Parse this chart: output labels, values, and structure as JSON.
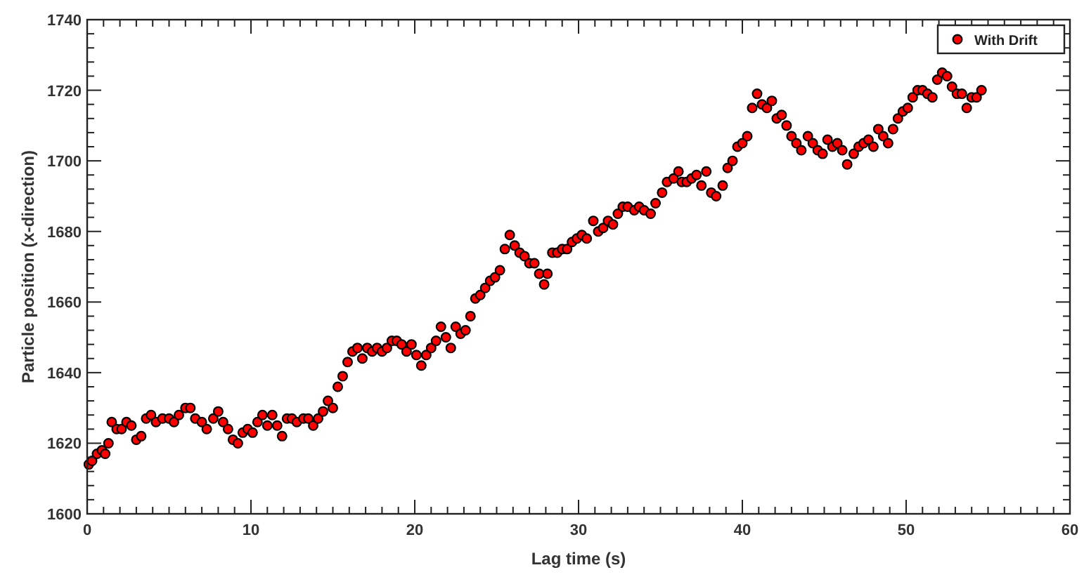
{
  "chart_data": {
    "type": "scatter",
    "xlabel": "Lag time (s)",
    "ylabel": "Particle position (x-direction)",
    "xlim": [
      0,
      60
    ],
    "ylim": [
      1600,
      1740
    ],
    "xticks": [
      0,
      {
        "value": 1,
        "label": null
      },
      {
        "value": 2,
        "label": null
      },
      {
        "value": 3,
        "label": null
      },
      {
        "value": 4,
        "label": null
      },
      {
        "value": 5,
        "label": null
      },
      {
        "value": 6,
        "label": null
      },
      {
        "value": 7,
        "label": null
      },
      {
        "value": 8,
        "label": null
      },
      {
        "value": 9,
        "label": null
      },
      10,
      {
        "value": 11,
        "label": null
      },
      {
        "value": 12,
        "label": null
      },
      {
        "value": 13,
        "label": null
      },
      {
        "value": 14,
        "label": null
      },
      {
        "value": 15,
        "label": null
      },
      {
        "value": 16,
        "label": null
      },
      {
        "value": 17,
        "label": null
      },
      {
        "value": 18,
        "label": null
      },
      {
        "value": 19,
        "label": null
      },
      20,
      {
        "value": 21,
        "label": null
      },
      {
        "value": 22,
        "label": null
      },
      {
        "value": 23,
        "label": null
      },
      {
        "value": 24,
        "label": null
      },
      {
        "value": 25,
        "label": null
      },
      {
        "value": 26,
        "label": null
      },
      {
        "value": 27,
        "label": null
      },
      {
        "value": 28,
        "label": null
      },
      {
        "value": 29,
        "label": null
      },
      30,
      {
        "value": 31,
        "label": null
      },
      {
        "value": 32,
        "label": null
      },
      {
        "value": 33,
        "label": null
      },
      {
        "value": 34,
        "label": null
      },
      {
        "value": 35,
        "label": null
      },
      {
        "value": 36,
        "label": null
      },
      {
        "value": 37,
        "label": null
      },
      {
        "value": 38,
        "label": null
      },
      {
        "value": 39,
        "label": null
      },
      40,
      {
        "value": 41,
        "label": null
      },
      {
        "value": 42,
        "label": null
      },
      {
        "value": 43,
        "label": null
      },
      {
        "value": 44,
        "label": null
      },
      {
        "value": 45,
        "label": null
      },
      {
        "value": 46,
        "label": null
      },
      {
        "value": 47,
        "label": null
      },
      {
        "value": 48,
        "label": null
      },
      {
        "value": 49,
        "label": null
      },
      50,
      {
        "value": 51,
        "label": null
      },
      {
        "value": 52,
        "label": null
      },
      {
        "value": 53,
        "label": null
      },
      {
        "value": 54,
        "label": null
      },
      {
        "value": 55,
        "label": null
      },
      {
        "value": 56,
        "label": null
      },
      {
        "value": 57,
        "label": null
      },
      {
        "value": 58,
        "label": null
      },
      {
        "value": 59,
        "label": null
      },
      60
    ],
    "yticks": [
      1600,
      {
        "value": 1604,
        "label": null
      },
      {
        "value": 1608,
        "label": null
      },
      {
        "value": 1612,
        "label": null
      },
      {
        "value": 1616,
        "label": null
      },
      1620,
      {
        "value": 1624,
        "label": null
      },
      {
        "value": 1628,
        "label": null
      },
      {
        "value": 1632,
        "label": null
      },
      {
        "value": 1636,
        "label": null
      },
      1640,
      {
        "value": 1644,
        "label": null
      },
      {
        "value": 1648,
        "label": null
      },
      {
        "value": 1652,
        "label": null
      },
      {
        "value": 1656,
        "label": null
      },
      1660,
      {
        "value": 1664,
        "label": null
      },
      {
        "value": 1668,
        "label": null
      },
      {
        "value": 1672,
        "label": null
      },
      {
        "value": 1676,
        "label": null
      },
      1680,
      {
        "value": 1684,
        "label": null
      },
      {
        "value": 1688,
        "label": null
      },
      {
        "value": 1692,
        "label": null
      },
      {
        "value": 1696,
        "label": null
      },
      1700,
      {
        "value": 1704,
        "label": null
      },
      {
        "value": 1708,
        "label": null
      },
      {
        "value": 1712,
        "label": null
      },
      {
        "value": 1716,
        "label": null
      },
      1720,
      {
        "value": 1724,
        "label": null
      },
      {
        "value": 1728,
        "label": null
      },
      {
        "value": 1732,
        "label": null
      },
      {
        "value": 1736,
        "label": null
      },
      1740
    ],
    "grid": false,
    "legend": "top right",
    "marker": "circle",
    "series": [
      {
        "name": "With Drift",
        "color": "#ff0000",
        "x": [
          0.1,
          0.3,
          0.6,
          0.9,
          1.1,
          1.3,
          1.5,
          1.8,
          2.1,
          2.4,
          2.7,
          3.0,
          3.3,
          3.6,
          3.9,
          4.2,
          4.6,
          5.0,
          5.3,
          5.6,
          6.0,
          6.3,
          6.6,
          7.0,
          7.3,
          7.7,
          8.0,
          8.3,
          8.6,
          8.9,
          9.2,
          9.5,
          9.8,
          10.1,
          10.4,
          10.7,
          11.0,
          11.3,
          11.6,
          11.9,
          12.2,
          12.5,
          12.8,
          13.2,
          13.5,
          13.8,
          14.1,
          14.4,
          14.7,
          15.0,
          15.3,
          15.6,
          15.9,
          16.2,
          16.5,
          16.8,
          17.1,
          17.4,
          17.7,
          18.0,
          18.3,
          18.6,
          18.9,
          19.2,
          19.5,
          19.8,
          20.1,
          20.4,
          20.7,
          21.0,
          21.3,
          21.6,
          21.9,
          22.2,
          22.5,
          22.8,
          23.1,
          23.4,
          23.7,
          24.0,
          24.3,
          24.6,
          24.9,
          25.2,
          25.5,
          25.8,
          26.1,
          26.4,
          26.7,
          27.0,
          27.3,
          27.6,
          27.9,
          28.1,
          28.4,
          28.7,
          29.0,
          29.3,
          29.6,
          29.9,
          30.2,
          30.5,
          30.9,
          31.2,
          31.5,
          31.8,
          32.1,
          32.4,
          32.7,
          33.0,
          33.4,
          33.7,
          34.0,
          34.4,
          34.7,
          35.1,
          35.4,
          35.8,
          36.1,
          36.3,
          36.6,
          36.9,
          37.2,
          37.5,
          37.8,
          38.1,
          38.4,
          38.8,
          39.1,
          39.4,
          39.7,
          40.0,
          40.3,
          40.6,
          40.9,
          41.2,
          41.5,
          41.8,
          42.1,
          42.4,
          42.7,
          43.0,
          43.3,
          43.6,
          44.0,
          44.3,
          44.6,
          44.9,
          45.2,
          45.5,
          45.8,
          46.1,
          46.4,
          46.8,
          47.1,
          47.4,
          47.7,
          48.0,
          48.3,
          48.6,
          48.9,
          49.2,
          49.5,
          49.8,
          50.1,
          50.4,
          50.7,
          51.0,
          51.3,
          51.6,
          51.9,
          52.2,
          52.5,
          52.8,
          53.1,
          53.4,
          53.7,
          54.0,
          54.3,
          54.6
        ],
        "values": [
          1614,
          1615,
          1617,
          1618,
          1617,
          1620,
          1626,
          1624,
          1624,
          1626,
          1625,
          1621,
          1622,
          1627,
          1628,
          1626,
          1627,
          1627,
          1626,
          1628,
          1630,
          1630,
          1627,
          1626,
          1624,
          1627,
          1629,
          1626,
          1624,
          1621,
          1620,
          1623,
          1624,
          1623,
          1626,
          1628,
          1625,
          1628,
          1625,
          1622,
          1627,
          1627,
          1626,
          1627,
          1627,
          1625,
          1627,
          1629,
          1632,
          1630,
          1636,
          1639,
          1643,
          1646,
          1647,
          1644,
          1647,
          1646,
          1647,
          1646,
          1647,
          1649,
          1649,
          1648,
          1646,
          1648,
          1645,
          1642,
          1645,
          1647,
          1649,
          1653,
          1650,
          1647,
          1653,
          1651,
          1652,
          1656,
          1661,
          1662,
          1664,
          1666,
          1667,
          1669,
          1675,
          1679,
          1676,
          1674,
          1673,
          1671,
          1671,
          1668,
          1665,
          1668,
          1674,
          1674,
          1675,
          1675,
          1677,
          1678,
          1679,
          1678,
          1683,
          1680,
          1681,
          1683,
          1682,
          1685,
          1687,
          1687,
          1686,
          1687,
          1686,
          1685,
          1688,
          1691,
          1694,
          1695,
          1697,
          1694,
          1694,
          1695,
          1696,
          1693,
          1697,
          1691,
          1690,
          1693,
          1698,
          1700,
          1704,
          1705,
          1707,
          1715,
          1719,
          1716,
          1715,
          1717,
          1712,
          1713,
          1710,
          1707,
          1705,
          1703,
          1707,
          1705,
          1703,
          1702,
          1706,
          1704,
          1705,
          1703,
          1699,
          1702,
          1704,
          1705,
          1706,
          1704,
          1709,
          1707,
          1705,
          1709,
          1712,
          1714,
          1715,
          1718,
          1720,
          1720,
          1719,
          1718,
          1723,
          1725,
          1724,
          1721,
          1719,
          1719,
          1715,
          1718,
          1718,
          1720
        ]
      }
    ]
  }
}
